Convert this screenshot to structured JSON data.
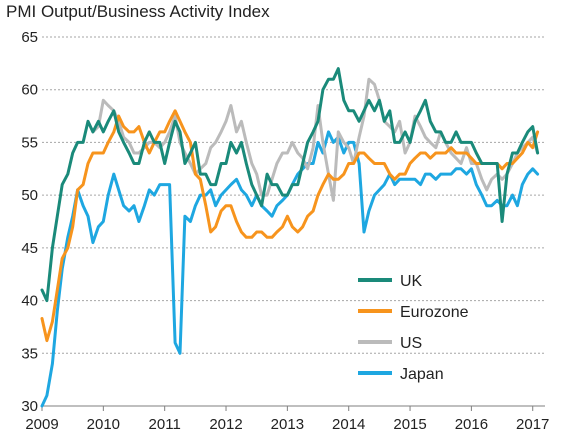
{
  "chart_data": {
    "type": "line",
    "title": "PMI Output/Business Activity Index",
    "xlabel": "",
    "ylabel": "",
    "xlim": [
      2009.0,
      2017.2
    ],
    "ylim": [
      30,
      65
    ],
    "x_ticks": [
      "2009",
      "2010",
      "2011",
      "2012",
      "2013",
      "2014",
      "2015",
      "2016",
      "2017"
    ],
    "y_ticks": [
      "30",
      "35",
      "40",
      "45",
      "50",
      "55",
      "60",
      "65"
    ],
    "grid": "horizontal dashed",
    "legend_position": "lower-right",
    "series": [
      {
        "name": "UK",
        "color": "#1a8a7a",
        "x": [
          2009.0,
          2009.08,
          2009.17,
          2009.25,
          2009.33,
          2009.42,
          2009.5,
          2009.58,
          2009.67,
          2009.75,
          2009.83,
          2009.92,
          2010.0,
          2010.08,
          2010.17,
          2010.25,
          2010.33,
          2010.42,
          2010.5,
          2010.58,
          2010.67,
          2010.75,
          2010.83,
          2010.92,
          2011.0,
          2011.08,
          2011.17,
          2011.25,
          2011.33,
          2011.42,
          2011.5,
          2011.58,
          2011.67,
          2011.75,
          2011.83,
          2011.92,
          2012.0,
          2012.08,
          2012.17,
          2012.25,
          2012.33,
          2012.42,
          2012.5,
          2012.58,
          2012.67,
          2012.75,
          2012.83,
          2012.92,
          2013.0,
          2013.08,
          2013.17,
          2013.25,
          2013.33,
          2013.42,
          2013.5,
          2013.58,
          2013.67,
          2013.75,
          2013.83,
          2013.92,
          2014.0,
          2014.08,
          2014.17,
          2014.25,
          2014.33,
          2014.42,
          2014.5,
          2014.58,
          2014.67,
          2014.75,
          2014.83,
          2014.92,
          2015.0,
          2015.08,
          2015.17,
          2015.25,
          2015.33,
          2015.42,
          2015.5,
          2015.58,
          2015.67,
          2015.75,
          2015.83,
          2015.92,
          2016.0,
          2016.08,
          2016.17,
          2016.25,
          2016.33,
          2016.42,
          2016.5,
          2016.58,
          2016.67,
          2016.75,
          2016.83,
          2016.92,
          2017.0,
          2017.08
        ],
        "values": [
          41,
          40,
          45,
          48,
          51,
          52,
          54,
          55,
          55,
          57,
          56,
          57,
          56,
          57,
          58,
          56,
          55,
          54,
          53,
          53,
          55,
          56,
          55,
          55,
          53,
          55,
          57,
          56,
          53,
          54,
          55,
          52,
          52,
          51,
          51,
          53,
          53,
          55,
          54,
          55,
          53,
          51,
          50,
          49,
          52,
          51,
          51,
          50,
          50,
          51,
          51,
          53,
          55,
          56,
          57,
          60,
          61,
          61,
          62,
          59,
          58,
          58,
          57,
          58,
          59,
          58,
          59,
          57,
          58,
          55,
          55,
          56,
          55,
          57,
          58,
          59,
          57,
          56,
          56,
          55,
          55,
          56,
          55,
          55,
          55,
          54,
          53,
          53,
          53,
          53,
          47.5,
          52,
          54,
          54,
          55,
          56,
          56.5,
          54
        ]
      },
      {
        "name": "Eurozone",
        "color": "#f7941d",
        "x": [
          2009.0,
          2009.08,
          2009.17,
          2009.25,
          2009.33,
          2009.42,
          2009.5,
          2009.58,
          2009.67,
          2009.75,
          2009.83,
          2009.92,
          2010.0,
          2010.08,
          2010.17,
          2010.25,
          2010.33,
          2010.42,
          2010.5,
          2010.58,
          2010.67,
          2010.75,
          2010.83,
          2010.92,
          2011.0,
          2011.08,
          2011.17,
          2011.25,
          2011.33,
          2011.42,
          2011.5,
          2011.58,
          2011.67,
          2011.75,
          2011.83,
          2011.92,
          2012.0,
          2012.08,
          2012.17,
          2012.25,
          2012.33,
          2012.42,
          2012.5,
          2012.58,
          2012.67,
          2012.75,
          2012.83,
          2012.92,
          2013.0,
          2013.08,
          2013.17,
          2013.25,
          2013.33,
          2013.42,
          2013.5,
          2013.58,
          2013.67,
          2013.75,
          2013.83,
          2013.92,
          2014.0,
          2014.08,
          2014.17,
          2014.25,
          2014.33,
          2014.42,
          2014.5,
          2014.58,
          2014.67,
          2014.75,
          2014.83,
          2014.92,
          2015.0,
          2015.08,
          2015.17,
          2015.25,
          2015.33,
          2015.42,
          2015.5,
          2015.58,
          2015.67,
          2015.75,
          2015.83,
          2015.92,
          2016.0,
          2016.08,
          2016.17,
          2016.25,
          2016.33,
          2016.42,
          2016.5,
          2016.58,
          2016.67,
          2016.75,
          2016.83,
          2016.92,
          2017.0,
          2017.08
        ],
        "values": [
          38.3,
          36.2,
          38,
          41,
          44,
          45,
          47,
          50.5,
          51,
          53,
          54,
          54,
          54,
          55,
          56,
          57.5,
          56.5,
          56,
          56,
          56.5,
          55,
          54,
          55,
          56,
          56,
          57,
          58,
          57,
          56,
          55,
          52,
          51.5,
          49,
          46.5,
          47,
          48.5,
          49,
          49,
          47.5,
          46.5,
          46,
          46,
          46.5,
          46.5,
          46,
          46,
          46.5,
          47,
          48,
          47,
          46.5,
          47,
          48,
          48.5,
          50,
          51,
          52,
          51.5,
          51.5,
          52,
          53,
          53,
          54,
          54,
          53.5,
          53,
          53,
          53,
          52,
          51.5,
          52,
          52,
          53,
          53.5,
          54,
          54,
          53.5,
          54,
          54,
          54,
          54.5,
          54,
          54,
          54,
          53.5,
          53,
          53,
          53,
          53,
          53,
          52.5,
          53,
          53,
          53.5,
          54,
          55,
          54.5,
          56
        ]
      },
      {
        "name": "US",
        "color": "#bbbbbb",
        "x": [
          2009.83,
          2009.92,
          2010.0,
          2010.08,
          2010.17,
          2010.25,
          2010.33,
          2010.42,
          2010.5,
          2010.58,
          2010.67,
          2010.75,
          2010.83,
          2010.92,
          2011.0,
          2011.08,
          2011.17,
          2011.25,
          2011.33,
          2011.42,
          2011.5,
          2011.58,
          2011.67,
          2011.75,
          2011.83,
          2011.92,
          2012.0,
          2012.08,
          2012.17,
          2012.25,
          2012.33,
          2012.42,
          2012.5,
          2012.58,
          2012.67,
          2012.75,
          2012.83,
          2012.92,
          2013.0,
          2013.08,
          2013.17,
          2013.25,
          2013.33,
          2013.42,
          2013.5,
          2013.58,
          2013.67,
          2013.75,
          2013.83,
          2013.92,
          2014.0,
          2014.08,
          2014.17,
          2014.25,
          2014.33,
          2014.42,
          2014.5,
          2014.58,
          2014.67,
          2014.75,
          2014.83,
          2014.92,
          2015.0,
          2015.08,
          2015.17,
          2015.25,
          2015.33,
          2015.42,
          2015.5,
          2015.58,
          2015.67,
          2015.75,
          2015.83,
          2015.92,
          2016.0,
          2016.08,
          2016.17,
          2016.25,
          2016.33,
          2016.42,
          2016.5,
          2016.58,
          2016.67,
          2016.75,
          2016.83,
          2016.92,
          2017.0,
          2017.08
        ],
        "values": [
          56,
          56.5,
          59,
          58.5,
          58,
          57,
          55.5,
          55,
          54,
          54,
          54.5,
          55,
          55,
          54.5,
          55,
          56,
          57.5,
          55,
          54,
          53,
          52,
          52.5,
          53,
          54.5,
          55,
          56,
          57,
          58.5,
          56,
          57,
          55,
          53,
          52,
          50,
          50,
          51.5,
          53,
          54,
          54,
          55,
          54,
          53.5,
          52.5,
          54.5,
          58.5,
          55,
          52,
          49.5,
          56,
          55,
          54.5,
          53,
          55.5,
          57.5,
          61,
          60.5,
          59,
          57,
          56.5,
          56,
          57,
          54,
          55,
          57.5,
          56.5,
          55.5,
          55,
          54.5,
          56,
          55,
          54,
          53.5,
          53,
          54.5,
          53,
          53,
          51.5,
          50.5,
          51.5,
          52,
          51.5,
          52,
          53,
          54,
          54.5,
          55,
          55.5,
          54
        ]
      },
      {
        "name": "Japan",
        "color": "#1ea7e1",
        "x": [
          2009.0,
          2009.08,
          2009.17,
          2009.25,
          2009.33,
          2009.42,
          2009.5,
          2009.58,
          2009.67,
          2009.75,
          2009.83,
          2009.92,
          2010.0,
          2010.08,
          2010.17,
          2010.25,
          2010.33,
          2010.42,
          2010.5,
          2010.58,
          2010.67,
          2010.75,
          2010.83,
          2010.92,
          2011.0,
          2011.08,
          2011.17,
          2011.25,
          2011.33,
          2011.42,
          2011.5,
          2011.58,
          2011.67,
          2011.75,
          2011.83,
          2011.92,
          2012.0,
          2012.08,
          2012.17,
          2012.25,
          2012.33,
          2012.42,
          2012.5,
          2012.58,
          2012.67,
          2012.75,
          2012.83,
          2012.92,
          2013.0,
          2013.08,
          2013.17,
          2013.25,
          2013.33,
          2013.42,
          2013.5,
          2013.58,
          2013.67,
          2013.75,
          2013.83,
          2013.92,
          2014.0,
          2014.08,
          2014.17,
          2014.25,
          2014.33,
          2014.42,
          2014.5,
          2014.58,
          2014.67,
          2014.75,
          2014.83,
          2014.92,
          2015.0,
          2015.08,
          2015.17,
          2015.25,
          2015.33,
          2015.42,
          2015.5,
          2015.58,
          2015.67,
          2015.75,
          2015.83,
          2015.92,
          2016.0,
          2016.08,
          2016.17,
          2016.25,
          2016.33,
          2016.42,
          2016.5,
          2016.58,
          2016.67,
          2016.75,
          2016.83,
          2016.92,
          2017.0,
          2017.08
        ],
        "values": [
          30,
          31,
          34,
          39,
          43,
          46,
          48,
          50.5,
          49,
          48,
          45.5,
          47,
          47.5,
          50,
          52,
          50.5,
          49,
          48.5,
          49,
          47.5,
          49,
          50.5,
          50,
          51,
          51,
          51,
          36,
          35,
          48,
          47.5,
          49,
          50,
          50,
          50.5,
          49,
          50,
          50.5,
          51,
          51.5,
          50.5,
          50,
          49,
          50,
          49,
          48.5,
          48,
          49,
          49.5,
          50,
          51,
          52,
          52.5,
          53,
          53,
          55,
          54,
          56,
          55,
          55.5,
          54,
          55,
          55,
          53,
          46.5,
          48.5,
          50,
          50.5,
          51,
          52,
          51,
          51.5,
          51.5,
          51.5,
          51.5,
          51,
          52,
          52,
          51.5,
          52,
          52,
          52,
          52.5,
          52.5,
          52,
          52.5,
          51,
          50,
          49,
          49,
          49.5,
          49,
          49,
          50,
          49,
          51,
          52,
          52.5,
          52
        ]
      }
    ]
  }
}
